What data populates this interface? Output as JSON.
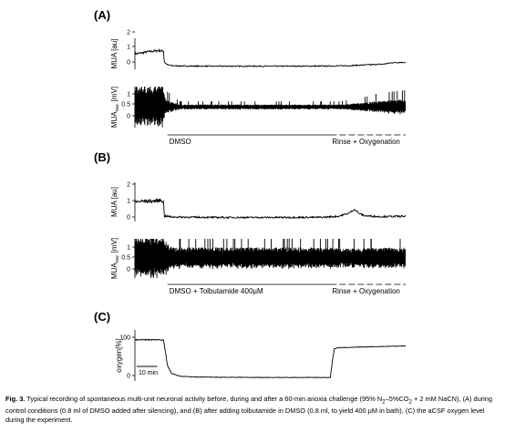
{
  "chart_data": [
    {
      "panel": "(A)",
      "type": "line",
      "ylabel": "MUA [au]",
      "yticks": [
        "0",
        "1",
        "2"
      ],
      "ylim": [
        -0.2,
        2.2
      ],
      "x_range_min": [
        0,
        133
      ],
      "series": [
        {
          "values": [
            [
              0,
              1.0
            ],
            [
              3,
              1.05
            ],
            [
              6,
              1.15
            ],
            [
              9,
              1.2
            ],
            [
              12,
              1.25
            ],
            [
              14,
              1.2
            ],
            [
              14.5,
              0.35
            ],
            [
              16,
              0.15
            ],
            [
              18,
              0.08
            ],
            [
              24,
              0.05
            ],
            [
              40,
              0.04
            ],
            [
              70,
              0.04
            ],
            [
              95,
              0.05
            ],
            [
              105,
              0.08
            ],
            [
              115,
              0.15
            ],
            [
              122,
              0.2
            ],
            [
              126,
              0.3
            ],
            [
              129,
              0.33
            ],
            [
              133,
              0.33
            ]
          ]
        }
      ]
    },
    {
      "panel": "(A)",
      "type": "line",
      "ylabel_main": "MUA",
      "ylabel_sub": "raw",
      "ylabel_unit": "[mV]",
      "yticks": [
        "1",
        "0.5",
        "0"
      ],
      "ylim": [
        -0.3,
        1.3
      ],
      "envelope_halfwidth": [
        [
          0,
          0.8
        ],
        [
          14,
          0.85
        ],
        [
          15,
          0.3
        ],
        [
          22,
          0.1
        ],
        [
          60,
          0.1
        ],
        [
          100,
          0.1
        ],
        [
          110,
          0.15
        ],
        [
          120,
          0.25
        ],
        [
          133,
          0.3
        ]
      ],
      "annotations": [
        {
          "text": "DMSO",
          "x_start": 16,
          "x_end": 96,
          "style": "solid"
        },
        {
          "text": "Rinse + Oxygenation",
          "x_start": 96,
          "x_end": 133,
          "style": "dashed"
        }
      ]
    },
    {
      "panel": "(B)",
      "type": "line",
      "ylabel": "MUA [au]",
      "yticks": [
        "0",
        "1",
        "2"
      ],
      "ylim": [
        -0.2,
        2.2
      ],
      "series": [
        {
          "values": [
            [
              0,
              1.0
            ],
            [
              5,
              1.05
            ],
            [
              10,
              1.05
            ],
            [
              13,
              1.1
            ],
            [
              14,
              1.0
            ],
            [
              14.5,
              0.15
            ],
            [
              18,
              0.08
            ],
            [
              40,
              0.05
            ],
            [
              70,
              0.05
            ],
            [
              92,
              0.06
            ],
            [
              100,
              0.12
            ],
            [
              105,
              0.3
            ],
            [
              108,
              0.55
            ],
            [
              110,
              0.3
            ],
            [
              113,
              0.15
            ],
            [
              120,
              0.1
            ],
            [
              133,
              0.12
            ]
          ]
        }
      ]
    },
    {
      "panel": "(B)",
      "type": "line",
      "ylabel_main": "MUA",
      "ylabel_sub": "raw",
      "ylabel_unit": "[mV]",
      "yticks": [
        "1",
        "0.5",
        "0"
      ],
      "ylim": [
        -0.3,
        1.3
      ],
      "envelope_halfwidth": [
        [
          0,
          0.85
        ],
        [
          14,
          0.85
        ],
        [
          18,
          0.45
        ],
        [
          60,
          0.45
        ],
        [
          95,
          0.45
        ],
        [
          100,
          0.4
        ],
        [
          133,
          0.45
        ]
      ],
      "annotations": [
        {
          "text": "DMSO + Tolbutamide 400µM",
          "x_start": 16,
          "x_end": 96,
          "style": "solid"
        },
        {
          "text": "Rinse + Oxygenation",
          "x_start": 96,
          "x_end": 133,
          "style": "dashed"
        }
      ]
    },
    {
      "panel": "(C)",
      "type": "line",
      "ylabel": "oxygen[%]",
      "yticks": [
        "0",
        "100"
      ],
      "ylim": [
        -5,
        110
      ],
      "series": [
        {
          "values": [
            [
              0,
              88
            ],
            [
              14,
              88
            ],
            [
              15,
              60
            ],
            [
              16,
              30
            ],
            [
              18,
              12
            ],
            [
              22,
              6
            ],
            [
              30,
              4
            ],
            [
              60,
              3
            ],
            [
              96,
              3
            ],
            [
              97,
              40
            ],
            [
              98,
              68
            ],
            [
              100,
              70
            ],
            [
              115,
              72
            ],
            [
              133,
              74
            ]
          ]
        }
      ]
    }
  ],
  "scalebar": {
    "label": "10 min",
    "minutes": 10
  },
  "caption": {
    "label": "Fig. 3.",
    "text_1": "Typical recording of spontaneous multi-unit neuronal activity before, during and after a 60-min anoxia challenge (95% N",
    "sub_1": "2",
    "text_2": "–5%CO",
    "sub_2": "2",
    "text_3": " + 2 mM NaCN), (A) during control conditions (0.8 ml of DMSO added after silencing), and (B) after adding tolbutamide in DMSO (0.8 ml, to yield 400 µM in bath), (C) the aCSF oxygen level during the experiment."
  }
}
